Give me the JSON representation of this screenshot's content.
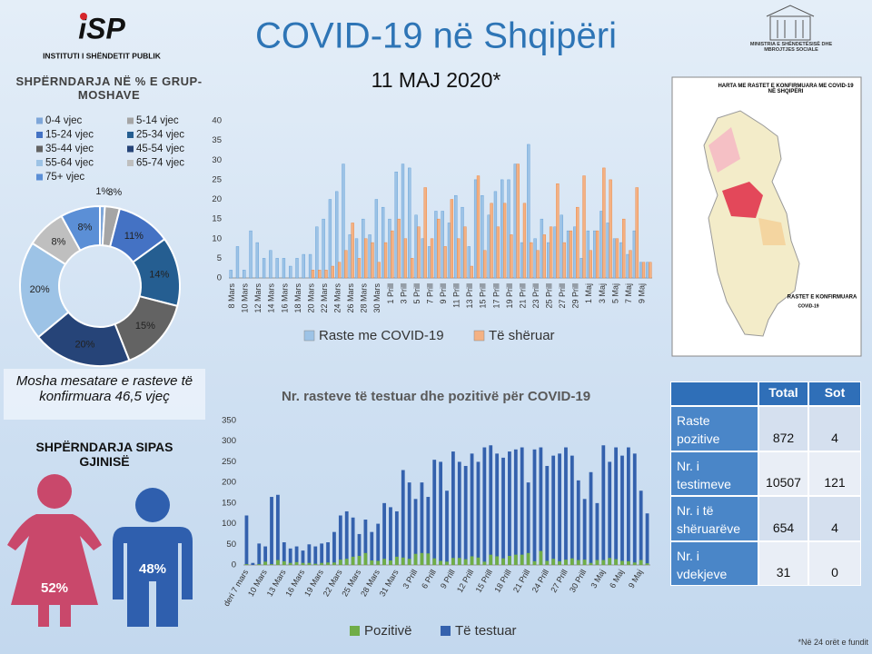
{
  "header": {
    "logo": "iSP",
    "organization": "INSTITUTI I SHËNDETIT PUBLIK",
    "title": "COVID-19 në Shqipëri",
    "date": "11 MAJ 2020*",
    "ministry": "MINISTRIA E SHËNDETËSISË DHE MBROJTJES SOCIALE"
  },
  "chart_data": [
    {
      "type": "donut",
      "title": "SHPËRNDARJA NË % E GRUP-MOSHAVE",
      "categories": [
        "0-4 vjec",
        "5-14 vjec",
        "15-24 vjec",
        "25-34 vjec",
        "35-44 vjec",
        "45-54 vjec",
        "55-64 vjec",
        "65-74 vjec",
        "75+ vjec"
      ],
      "values": [
        1,
        3,
        11,
        14,
        15,
        20,
        20,
        8,
        8
      ],
      "value_labels": [
        "1%",
        "3%",
        "11%",
        "14%",
        "15%",
        "20%",
        "20%",
        "8%",
        "8%"
      ],
      "colors": [
        "#7fa7d9",
        "#a5a5a5",
        "#4472c4",
        "#255e91",
        "#636363",
        "#264478",
        "#9dc3e6",
        "#bfbfbf",
        "#5b8fd6"
      ]
    },
    {
      "type": "bar",
      "barmode": "group",
      "grid": false,
      "categories": [
        "8 Mars",
        null,
        "10 Mars",
        null,
        "12 Mars",
        null,
        "14 Mars",
        null,
        "16 Mars",
        null,
        "18 Mars",
        null,
        "20 Mars",
        null,
        "22 Mars",
        null,
        "24 Mars",
        null,
        "26 Mars",
        null,
        "28 Mars",
        null,
        "30 Mars",
        null,
        "1 Prill",
        null,
        "3 Prill",
        null,
        "5 Prill",
        null,
        "7 Prill",
        null,
        "9 Prill",
        null,
        "11 Prill",
        null,
        "13 Prill",
        null,
        "15 Prill",
        null,
        "17 Prill",
        null,
        "19 Prill",
        null,
        "21 Prill",
        null,
        "23 Prill",
        null,
        "25 Prill",
        null,
        "27 Prill",
        null,
        "29 Prill",
        null,
        "1 Maj",
        null,
        "3 Maj",
        null,
        "5 Maj",
        null,
        "7 Maj",
        null,
        "9 Maj",
        null
      ],
      "series": [
        {
          "name": "Raste me COVID-19",
          "color": "#9dc3e6",
          "values": [
            2,
            8,
            2,
            12,
            9,
            5,
            7,
            5,
            5,
            3,
            5,
            6,
            6,
            13,
            15,
            20,
            22,
            29,
            11,
            10,
            15,
            11,
            20,
            18,
            15,
            27,
            29,
            28,
            16,
            10,
            8,
            17,
            17,
            14,
            21,
            18,
            8,
            25,
            21,
            16,
            22,
            25,
            25,
            29,
            9,
            34,
            10,
            15,
            9,
            13,
            16,
            12,
            13,
            5,
            12,
            12,
            17,
            14,
            10,
            9,
            6,
            12,
            4,
            4
          ]
        },
        {
          "name": "Të shëruar",
          "color": "#f4b183",
          "values": [
            0,
            0,
            0,
            0,
            0,
            0,
            0,
            0,
            0,
            0,
            0,
            0,
            2,
            2,
            2,
            3,
            4,
            7,
            14,
            5,
            10,
            9,
            4,
            9,
            12,
            15,
            10,
            5,
            13,
            23,
            10,
            15,
            8,
            20,
            10,
            13,
            3,
            26,
            7,
            19,
            13,
            19,
            11,
            29,
            19,
            9,
            7,
            11,
            13,
            24,
            9,
            12,
            18,
            26,
            7,
            12,
            28,
            25,
            10,
            15,
            7,
            23,
            4,
            4
          ]
        }
      ],
      "ylim": [
        0,
        40
      ],
      "yticks": [
        0,
        5,
        10,
        15,
        20,
        25,
        30,
        35,
        40
      ]
    },
    {
      "type": "bar",
      "barmode": "overlay",
      "grid": false,
      "title": "Nr. rasteve të testuar dhe pozitivë për COVID-19",
      "categories": [
        "deri 7 mars",
        null,
        null,
        "10 Mars",
        null,
        null,
        "13 Mars",
        null,
        null,
        "16 Mars",
        null,
        null,
        "19 Mars",
        null,
        null,
        "22 Mars",
        null,
        null,
        "25 Mars",
        null,
        null,
        "28 Mars",
        null,
        null,
        "31 Mars",
        null,
        null,
        "3 Prill",
        null,
        null,
        "6 Prill",
        null,
        null,
        "9 Prill",
        null,
        null,
        "12 Prill",
        null,
        null,
        "15 Prill",
        null,
        null,
        "18 Prill",
        null,
        null,
        "21 Prill",
        null,
        null,
        "24 Prill",
        null,
        null,
        "27 Prill",
        null,
        null,
        "30 Prill",
        null,
        null,
        "3 Maj",
        null,
        null,
        "6 Maj",
        null,
        null,
        "9 Maj",
        null
      ],
      "series": [
        {
          "name": "Të testuar",
          "color": "#3461ad",
          "values": [
            120,
            5,
            52,
            45,
            165,
            170,
            55,
            40,
            45,
            35,
            50,
            45,
            52,
            55,
            80,
            120,
            130,
            115,
            75,
            110,
            80,
            100,
            150,
            140,
            130,
            230,
            200,
            160,
            200,
            165,
            255,
            250,
            180,
            275,
            250,
            240,
            270,
            250,
            285,
            290,
            270,
            260,
            275,
            280,
            285,
            200,
            280,
            285,
            240,
            265,
            270,
            285,
            265,
            205,
            160,
            225,
            150,
            290,
            250,
            285,
            265,
            285,
            270,
            180,
            125
          ]
        },
        {
          "name": "Pozitivë",
          "color": "#70ad47",
          "values": [
            2,
            0,
            2,
            8,
            2,
            12,
            9,
            5,
            7,
            5,
            5,
            3,
            5,
            6,
            6,
            13,
            15,
            20,
            22,
            29,
            11,
            10,
            15,
            11,
            20,
            18,
            15,
            27,
            29,
            28,
            16,
            10,
            8,
            17,
            17,
            14,
            21,
            18,
            8,
            25,
            21,
            16,
            22,
            25,
            25,
            29,
            9,
            34,
            10,
            15,
            9,
            13,
            16,
            12,
            13,
            5,
            12,
            12,
            17,
            14,
            10,
            9,
            6,
            12,
            4
          ]
        }
      ],
      "ylim": [
        0,
        350
      ],
      "yticks": [
        0,
        50,
        100,
        150,
        200,
        250,
        300,
        350
      ]
    },
    {
      "type": "pictogram",
      "title": "SHPËRNDARJA SIPAS GJINISË",
      "values": [
        52,
        48
      ],
      "value_labels": [
        "52%",
        "48%"
      ],
      "colors": [
        "#c9486b",
        "#2f5fae"
      ]
    }
  ],
  "average_age": "Mosha mesatare e rasteve të konfirmuara 46,5 vjeç",
  "map": {
    "title": "HARTA ME RASTET E KONFIRMUARA ME COVID-19 NË SHQIPËRI",
    "legend_title": "RASTET E KONFIRMUARA",
    "legend_subtitle": "COVID-19"
  },
  "table": {
    "header": [
      "Total",
      "Sot"
    ],
    "rows": [
      [
        "Raste pozitive",
        872,
        4
      ],
      [
        "Nr. i testimeve",
        10507,
        121
      ],
      [
        "Nr. i të shëruarëve",
        654,
        4
      ],
      [
        "Nr. i vdekjeve",
        31,
        0
      ]
    ]
  },
  "footnote": "*Në 24 orët e fundit"
}
